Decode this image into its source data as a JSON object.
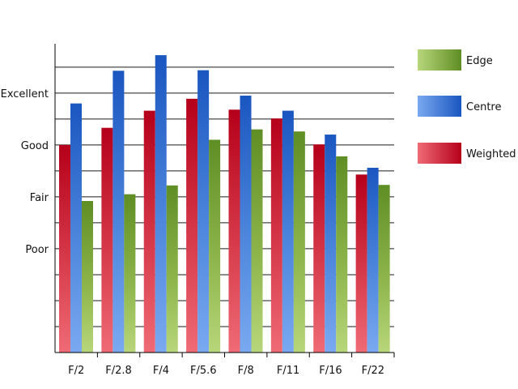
{
  "chart_data": {
    "type": "bar",
    "title": "",
    "xlabel": "",
    "ylabel": "",
    "categories": [
      "F/2",
      "F/2.8",
      "F/4",
      "F/5.6",
      "F/8",
      "F/11",
      "F/16",
      "F/22"
    ],
    "y_tick_labels": [
      "Poor",
      "Fair",
      "Good",
      "Excellent"
    ],
    "y_tick_values": [
      1,
      2,
      3,
      4
    ],
    "ylim": [
      -1,
      4.95
    ],
    "grid": true,
    "legend_position": "right",
    "series": [
      {
        "name": "Weighted",
        "color": "#c8102e",
        "values": [
          3.0,
          3.33,
          3.66,
          3.89,
          3.68,
          3.51,
          3.01,
          2.43
        ]
      },
      {
        "name": "Centre",
        "color": "#1f5fc4",
        "values": [
          3.8,
          4.43,
          4.73,
          4.44,
          3.95,
          3.66,
          3.2,
          2.56
        ]
      },
      {
        "name": "Edge",
        "color": "#6a9a2a",
        "values": [
          1.92,
          2.05,
          2.22,
          3.1,
          3.3,
          3.26,
          2.78,
          2.23
        ]
      }
    ],
    "legend": [
      "Edge",
      "Centre",
      "Weighted"
    ]
  }
}
